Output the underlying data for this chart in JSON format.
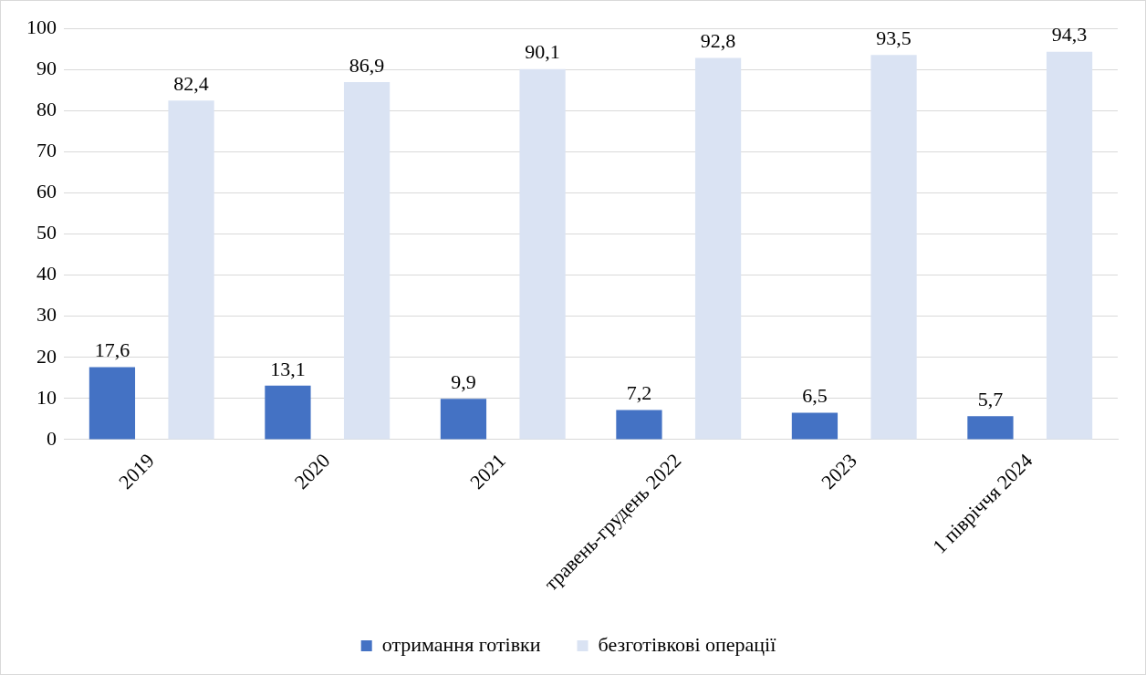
{
  "chart_data": {
    "type": "bar",
    "categories": [
      "2019",
      "2020",
      "2021",
      "травень-грудень 2022",
      "2023",
      "1 півріччя 2024"
    ],
    "series": [
      {
        "name": "отримання готівки",
        "color": "#4472c4",
        "values": [
          17.6,
          13.1,
          9.9,
          7.2,
          6.5,
          5.7
        ],
        "value_labels": [
          "17,6",
          "13,1",
          "9,9",
          "7,2",
          "6,5",
          "5,7"
        ]
      },
      {
        "name": "безготівкові операції",
        "color": "#dae3f3",
        "values": [
          82.4,
          86.9,
          90.1,
          92.8,
          93.5,
          94.3
        ],
        "value_labels": [
          "82,4",
          "86,9",
          "90,1",
          "92,8",
          "93,5",
          "94,3"
        ]
      }
    ],
    "ylim": [
      0,
      100
    ],
    "yticks": [
      0,
      10,
      20,
      30,
      40,
      50,
      60,
      70,
      80,
      90,
      100
    ],
    "grid": "y",
    "legend": "bottom"
  }
}
